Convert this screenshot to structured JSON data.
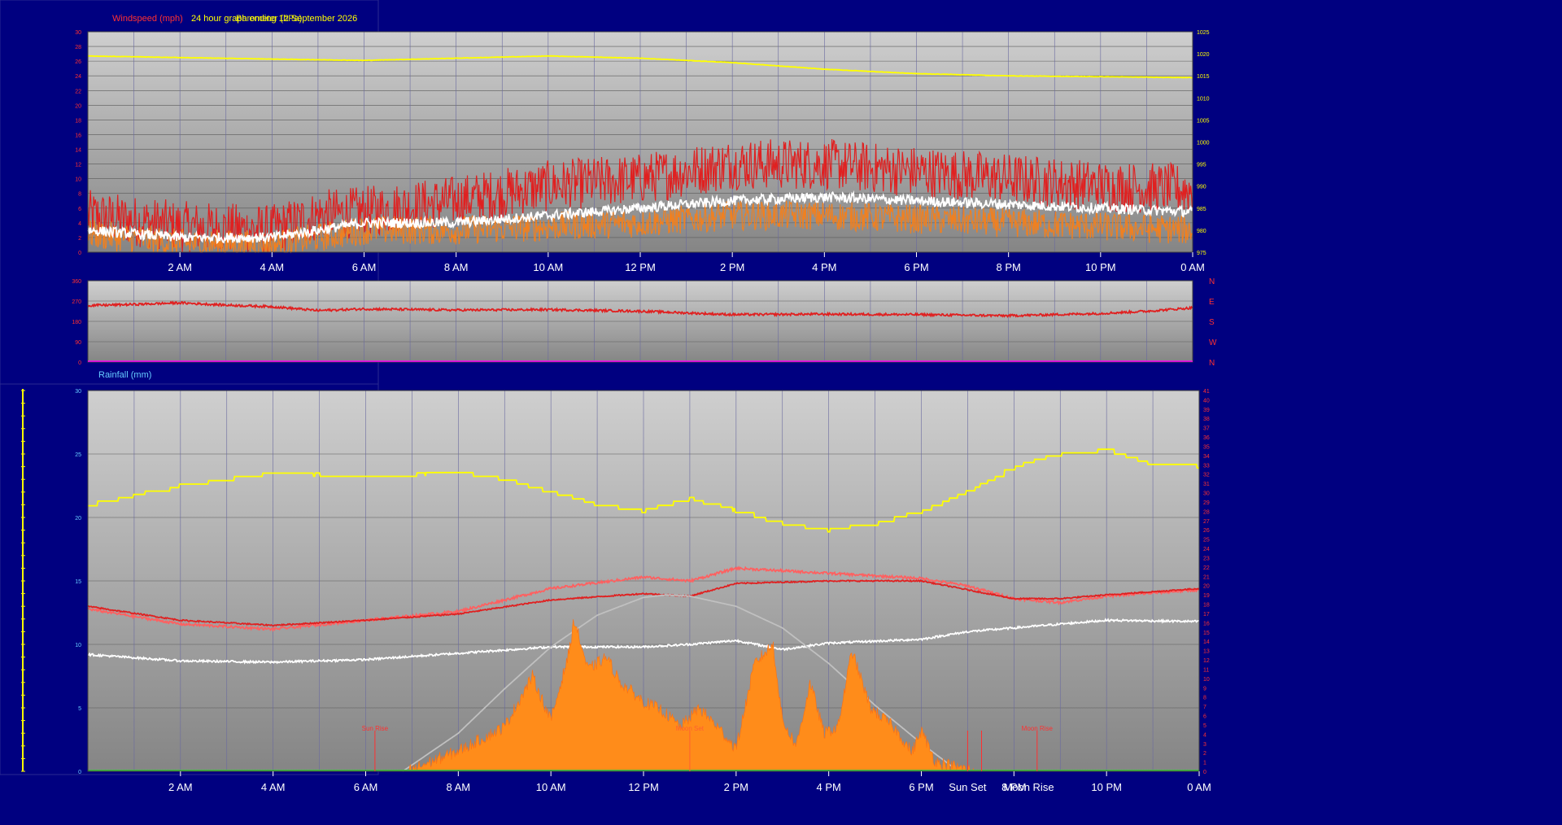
{
  "header": {
    "windspeed_label": "Windspeed (mph)",
    "title_overlap_1": "24 hour graph ending 12 September 2026",
    "title_overlap_2": "Barometer (hPa)"
  },
  "rainfall_label": "Rainfall (mm)",
  "time_axis": {
    "labels": [
      "2 AM",
      "4 AM",
      "6 AM",
      "8 AM",
      "10 AM",
      "12 PM",
      "2 PM",
      "4 PM",
      "6 PM",
      "8 PM",
      "10 PM",
      "0 AM"
    ],
    "hours": [
      2,
      4,
      6,
      8,
      10,
      12,
      14,
      16,
      18,
      20,
      22,
      24
    ]
  },
  "events": [
    {
      "label": "Sun Rise",
      "hour": 6.2,
      "color": "#ff3030",
      "pos": "inline"
    },
    {
      "label": "Sun Set",
      "hour": 19.0,
      "color": "#ffffff",
      "pos": "axis"
    },
    {
      "label": "Moon Rise",
      "hour": 19.3,
      "color": "#ffffff",
      "pos": "axis"
    },
    {
      "label": "Moon Set",
      "hour": 13.0,
      "color": "#ff6030",
      "pos": "inline"
    },
    {
      "label": "Moon Rise",
      "hour": 20.5,
      "color": "#ff3030",
      "pos": "inline"
    }
  ],
  "chart_data": [
    {
      "type": "line",
      "id": "wind",
      "left_ticks": [
        0,
        2,
        4,
        6,
        8,
        10,
        12,
        14,
        16,
        18,
        20,
        22,
        24,
        26,
        28,
        30
      ],
      "right_ticks": [
        975,
        980,
        985,
        990,
        995,
        1000,
        1005,
        1010,
        1015,
        1020,
        1025
      ],
      "ylim": [
        0,
        30
      ],
      "ylim_right": [
        975,
        1025
      ],
      "x_range": [
        0,
        24
      ],
      "series": [
        {
          "name": "Windspeed (mph)",
          "axis": "left",
          "color": "#e02020",
          "points": [
            [
              0,
              5.0
            ],
            [
              2,
              3.5
            ],
            [
              4,
              3.0
            ],
            [
              5,
              5
            ],
            [
              6,
              5.5
            ],
            [
              8,
              7
            ],
            [
              10,
              9
            ],
            [
              12,
              10
            ],
            [
              14,
              12
            ],
            [
              16,
              12
            ],
            [
              18,
              11
            ],
            [
              20,
              10
            ],
            [
              22,
              9
            ],
            [
              24,
              8.5
            ]
          ],
          "noise": 3.5
        },
        {
          "axis": "left",
          "color": "#f08020",
          "points": [
            [
              0,
              2.5
            ],
            [
              2,
              1.2
            ],
            [
              4,
              1
            ],
            [
              5,
              2
            ],
            [
              6,
              3
            ],
            [
              8,
              3
            ],
            [
              10,
              3.5
            ],
            [
              12,
              4
            ],
            [
              14,
              5
            ],
            [
              16,
              5
            ],
            [
              18,
              4.5
            ],
            [
              20,
              4
            ],
            [
              22,
              3.5
            ],
            [
              24,
              3
            ]
          ],
          "noise": 2.0
        },
        {
          "axis": "left",
          "color": "#ffffff",
          "points": [
            [
              0,
              3.0
            ],
            [
              2,
              2.0
            ],
            [
              4,
              2
            ],
            [
              5,
              3
            ],
            [
              6,
              4
            ],
            [
              8,
              4
            ],
            [
              10,
              5
            ],
            [
              12,
              6
            ],
            [
              14,
              7
            ],
            [
              16,
              7.5
            ],
            [
              18,
              7
            ],
            [
              20,
              6.5
            ],
            [
              22,
              6
            ],
            [
              24,
              5.5
            ]
          ],
          "noise": 0.7
        },
        {
          "name": "Barometer (hPa)",
          "axis": "right",
          "color": "#ffff00",
          "points": [
            [
              0,
              1019.5
            ],
            [
              4,
              1018.8
            ],
            [
              6,
              1018.5
            ],
            [
              8,
              1019
            ],
            [
              10,
              1019.5
            ],
            [
              12,
              1019
            ],
            [
              14,
              1018
            ],
            [
              16,
              1016.5
            ],
            [
              18,
              1015.5
            ],
            [
              20,
              1015
            ],
            [
              22,
              1014.8
            ],
            [
              24,
              1014.6
            ]
          ],
          "noise": 0.05
        }
      ]
    },
    {
      "type": "line",
      "id": "direction",
      "left_ticks": [
        0,
        90,
        180,
        270,
        360
      ],
      "right_labels": [
        "N",
        "W",
        "S",
        "E",
        "N"
      ],
      "ylim": [
        0,
        360
      ],
      "x_range": [
        0,
        24
      ],
      "series": [
        {
          "axis": "left",
          "color": "#e02020",
          "points": [
            [
              0,
              250
            ],
            [
              1,
              255
            ],
            [
              2,
              262
            ],
            [
              3,
              252
            ],
            [
              4,
              245
            ],
            [
              5,
              228
            ],
            [
              6,
              235
            ],
            [
              8,
              230
            ],
            [
              10,
              232
            ],
            [
              12,
              225
            ],
            [
              14,
              210
            ],
            [
              16,
              212
            ],
            [
              18,
              210
            ],
            [
              20,
              205
            ],
            [
              22,
              215
            ],
            [
              23,
              225
            ],
            [
              24,
              240
            ]
          ],
          "noise": 5
        }
      ]
    },
    {
      "type": "area",
      "id": "temperature",
      "left_ticks": [
        0,
        5,
        10,
        15,
        20,
        25,
        30
      ],
      "right_ticks": [
        0,
        1,
        2,
        3,
        4,
        5,
        6,
        7,
        8,
        9,
        10,
        11,
        12,
        13,
        14,
        15,
        16,
        17,
        18,
        19,
        20,
        21,
        22,
        23,
        24,
        25,
        26,
        27,
        28,
        29,
        30,
        31,
        32,
        33,
        34,
        35,
        36,
        37,
        38,
        39,
        40,
        41
      ],
      "ylim": [
        0,
        30
      ],
      "ylim_right": [
        0,
        41
      ],
      "x_range": [
        0,
        24
      ],
      "series": [
        {
          "axis": "left",
          "color": "#ffff00",
          "points": [
            [
              0,
              21
            ],
            [
              2,
              22.5
            ],
            [
              4,
              23.5
            ],
            [
              6,
              23.2
            ],
            [
              8,
              23.5
            ],
            [
              9,
              23
            ],
            [
              10,
              22
            ],
            [
              11,
              21
            ],
            [
              12,
              20.5
            ],
            [
              13,
              21.5
            ],
            [
              14,
              20.5
            ],
            [
              15,
              19.5
            ],
            [
              16,
              19
            ],
            [
              17,
              19.5
            ],
            [
              18,
              20.5
            ],
            [
              19,
              22
            ],
            [
              20,
              24
            ],
            [
              21,
              25
            ],
            [
              22,
              25.3
            ],
            [
              23,
              24.2
            ],
            [
              24,
              24
            ]
          ],
          "noise": 0.15,
          "step": true
        },
        {
          "axis": "left",
          "color": "#ff6060",
          "points": [
            [
              0,
              12.8
            ],
            [
              2,
              11.6
            ],
            [
              4,
              11.2
            ],
            [
              6,
              11.9
            ],
            [
              8,
              12.6
            ],
            [
              10,
              14.4
            ],
            [
              12,
              15.3
            ],
            [
              13,
              15.0
            ],
            [
              14,
              16.0
            ],
            [
              16,
              15.6
            ],
            [
              18,
              15.2
            ],
            [
              19,
              14.6
            ],
            [
              20,
              13.6
            ],
            [
              21,
              13.3
            ],
            [
              22,
              13.8
            ],
            [
              24,
              14.3
            ]
          ],
          "noise": 0.1
        },
        {
          "axis": "left",
          "color": "#e02020",
          "points": [
            [
              0,
              13.0
            ],
            [
              2,
              11.9
            ],
            [
              4,
              11.5
            ],
            [
              6,
              11.9
            ],
            [
              8,
              12.4
            ],
            [
              10,
              13.5
            ],
            [
              12,
              14.0
            ],
            [
              13,
              13.8
            ],
            [
              14,
              14.8
            ],
            [
              16,
              15.0
            ],
            [
              18,
              15.0
            ],
            [
              19,
              14.3
            ],
            [
              20,
              13.6
            ],
            [
              21,
              13.6
            ],
            [
              22,
              13.9
            ],
            [
              24,
              14.4
            ]
          ],
          "noise": 0.05
        },
        {
          "axis": "left",
          "color": "#ffffff",
          "points": [
            [
              0,
              9.2
            ],
            [
              2,
              8.7
            ],
            [
              4,
              8.6
            ],
            [
              6,
              8.8
            ],
            [
              8,
              9.3
            ],
            [
              10,
              9.8
            ],
            [
              12,
              9.8
            ],
            [
              13,
              10.0
            ],
            [
              14,
              10.3
            ],
            [
              15,
              9.6
            ],
            [
              16,
              10.1
            ],
            [
              18,
              10.4
            ],
            [
              19,
              11.0
            ],
            [
              20,
              11.3
            ],
            [
              22,
              11.9
            ],
            [
              24,
              11.8
            ]
          ],
          "noise": 0.08
        },
        {
          "axis": "left",
          "color": "#c0c0c0",
          "points": [
            [
              6.8,
              0
            ],
            [
              8,
              3.0
            ],
            [
              9,
              6.5
            ],
            [
              10,
              9.8
            ],
            [
              11,
              12.3
            ],
            [
              12,
              13.7
            ],
            [
              12.5,
              13.9
            ],
            [
              13,
              13.8
            ],
            [
              14,
              13.0
            ],
            [
              15,
              11.3
            ],
            [
              16,
              8.5
            ],
            [
              17,
              5.2
            ],
            [
              18,
              2.2
            ],
            [
              18.8,
              0
            ]
          ],
          "noise": 0
        },
        {
          "axis": "left",
          "color": "#ff8c1a",
          "fill": true,
          "points": [
            [
              6.9,
              0
            ],
            [
              7.3,
              0.6
            ],
            [
              8,
              1.6
            ],
            [
              9,
              3.5
            ],
            [
              9.6,
              7.5
            ],
            [
              10,
              4
            ],
            [
              10.4,
              9.5
            ],
            [
              10.5,
              12
            ],
            [
              10.8,
              8
            ],
            [
              11.2,
              9
            ],
            [
              11.5,
              7
            ],
            [
              12,
              5.5
            ],
            [
              12.4,
              4.8
            ],
            [
              12.8,
              3.5
            ],
            [
              13.2,
              5
            ],
            [
              13.6,
              3.5
            ],
            [
              14,
              1.8
            ],
            [
              14.4,
              8.5
            ],
            [
              14.8,
              10
            ],
            [
              15,
              4
            ],
            [
              15.3,
              2
            ],
            [
              15.6,
              7
            ],
            [
              15.9,
              3
            ],
            [
              16.2,
              3.5
            ],
            [
              16.5,
              9.5
            ],
            [
              16.9,
              5
            ],
            [
              17.4,
              3.5
            ],
            [
              17.8,
              1.5
            ],
            [
              18,
              3.2
            ],
            [
              18.3,
              0.8
            ],
            [
              18.8,
              0.3
            ],
            [
              19.2,
              0
            ]
          ],
          "noise": 0.5
        }
      ]
    }
  ]
}
